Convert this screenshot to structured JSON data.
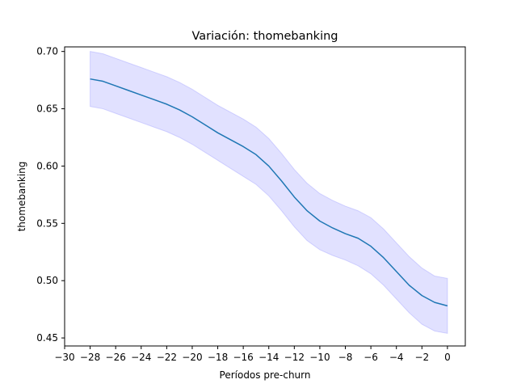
{
  "chart_data": {
    "type": "line",
    "title": "Variación: thomebanking",
    "xlabel": "Períodos pre-churn",
    "ylabel": "thomebanking",
    "xlim": [
      -30,
      1.4
    ],
    "ylim": [
      0.443,
      0.704
    ],
    "x_ticks": [
      -30,
      -28,
      -26,
      -24,
      -22,
      -20,
      -18,
      -16,
      -14,
      -12,
      -10,
      -8,
      -6,
      -4,
      -2,
      0
    ],
    "x_tick_labels": [
      "−30",
      "−28",
      "−26",
      "−24",
      "−22",
      "−20",
      "−18",
      "−16",
      "−14",
      "−12",
      "−10",
      "−8",
      "−6",
      "−4",
      "−2",
      "0"
    ],
    "y_ticks": [
      0.45,
      0.5,
      0.55,
      0.6,
      0.65,
      0.7
    ],
    "y_tick_labels": [
      "0.45",
      "0.50",
      "0.55",
      "0.60",
      "0.65",
      "0.70"
    ],
    "grid": false,
    "series": [
      {
        "x": [
          -28,
          -27,
          -26,
          -25,
          -24,
          -23,
          -22,
          -21,
          -20,
          -19,
          -18,
          -17,
          -16,
          -15,
          -14,
          -13,
          -12,
          -11,
          -10,
          -9,
          -8,
          -7,
          -6,
          -5,
          -4,
          -3,
          -2,
          -1,
          0
        ],
        "values": [
          0.676,
          0.674,
          0.67,
          0.666,
          0.662,
          0.658,
          0.654,
          0.649,
          0.643,
          0.636,
          0.629,
          0.623,
          0.617,
          0.61,
          0.6,
          0.587,
          0.573,
          0.561,
          0.552,
          0.546,
          0.541,
          0.537,
          0.53,
          0.52,
          0.508,
          0.496,
          0.487,
          0.481,
          0.478
        ],
        "lower": [
          0.652,
          0.65,
          0.646,
          0.642,
          0.638,
          0.634,
          0.63,
          0.625,
          0.619,
          0.612,
          0.605,
          0.598,
          0.591,
          0.584,
          0.574,
          0.561,
          0.547,
          0.535,
          0.527,
          0.522,
          0.518,
          0.513,
          0.506,
          0.496,
          0.484,
          0.472,
          0.462,
          0.456,
          0.454
        ],
        "upper": [
          0.7,
          0.698,
          0.694,
          0.69,
          0.686,
          0.682,
          0.678,
          0.673,
          0.667,
          0.66,
          0.653,
          0.647,
          0.641,
          0.634,
          0.624,
          0.611,
          0.597,
          0.585,
          0.576,
          0.57,
          0.565,
          0.561,
          0.555,
          0.545,
          0.533,
          0.521,
          0.511,
          0.504,
          0.502
        ],
        "color": "#1f77b4",
        "band_color": "#6a6aff"
      }
    ]
  }
}
